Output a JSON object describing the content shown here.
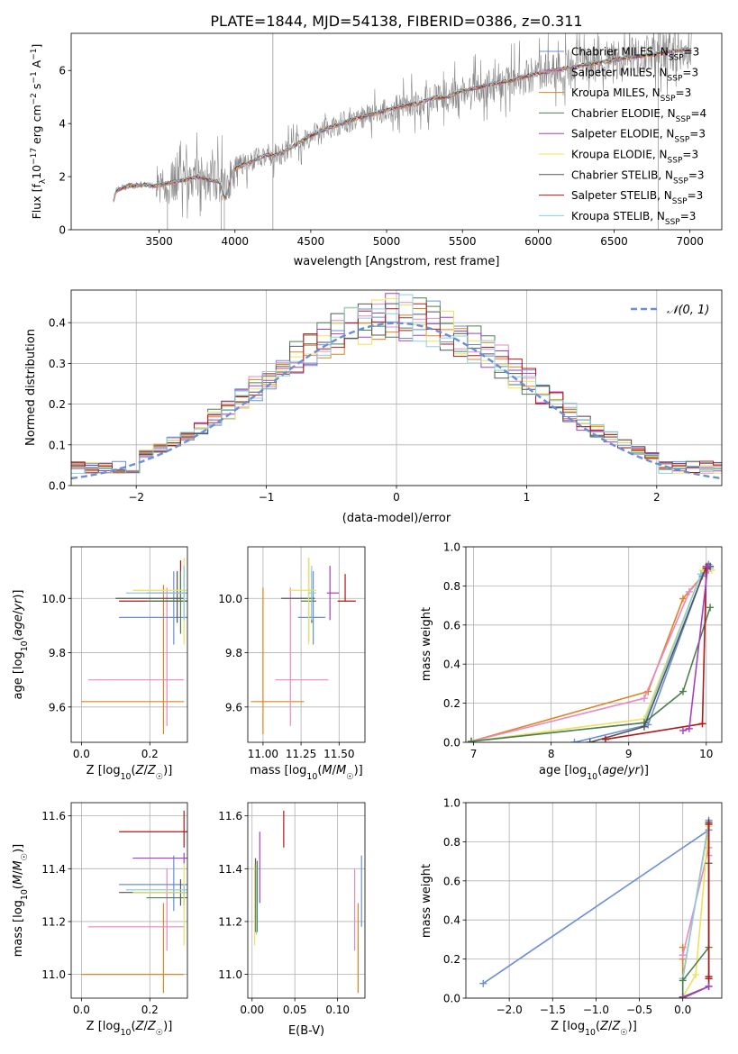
{
  "figure_title": "PLATE=1844, MJD=54138, FIBERID=0386, z=0.311",
  "colors": {
    "Chabrier MILES": "#6a8fd6",
    "Salpeter MILES": "#e889c0",
    "Kroupa MILES": "#e0821f",
    "Chabrier ELODIE": "#4f7f4f",
    "Salpeter ELODIE": "#a640c2",
    "Kroupa ELODIE": "#f0e15a",
    "Chabrier STELIB": "#555555",
    "Salpeter STELIB": "#b21818",
    "Kroupa STELIB": "#88cfe0",
    "data": "#888888",
    "gaussian": "#6a8fd6"
  },
  "chart_data": [
    {
      "type": "line",
      "panel": "spectrum",
      "xlabel": "wavelength [Angstrom, rest frame]",
      "ylabel": "Flux [f_λ10^-17 erg cm^-2 s^-1 A^-1]",
      "xlim": [
        2920,
        7210
      ],
      "ylim": [
        0,
        7.4
      ],
      "xticks": [
        3500,
        4000,
        4500,
        5000,
        5500,
        6000,
        6500,
        7000
      ],
      "yticks": [
        0,
        2,
        4,
        6
      ],
      "legend_position": "right",
      "legend": [
        {
          "label": "Chabrier MILES, N_SSP=3",
          "base": "Chabrier MILES, N",
          "sub": "SSP",
          "tail": "=3"
        },
        {
          "label": "Salpeter MILES, N_SSP=3",
          "base": "Salpeter MILES, N",
          "sub": "SSP",
          "tail": "=3"
        },
        {
          "label": "Kroupa MILES, N_SSP=3",
          "base": "Kroupa MILES, N",
          "sub": "SSP",
          "tail": "=3"
        },
        {
          "label": "Chabrier ELODIE, N_SSP=4",
          "base": "Chabrier ELODIE, N",
          "sub": "SSP",
          "tail": "=4"
        },
        {
          "label": "Salpeter ELODIE, N_SSP=3",
          "base": "Salpeter ELODIE, N",
          "sub": "SSP",
          "tail": "=3"
        },
        {
          "label": "Kroupa ELODIE, N_SSP=3",
          "base": "Kroupa ELODIE, N",
          "sub": "SSP",
          "tail": "=3"
        },
        {
          "label": "Chabrier STELIB, N_SSP=3",
          "base": "Chabrier STELIB, N",
          "sub": "SSP",
          "tail": "=3"
        },
        {
          "label": "Salpeter STELIB, N_SSP=3",
          "base": "Salpeter STELIB, N",
          "sub": "SSP",
          "tail": "=3"
        },
        {
          "label": "Kroupa STELIB, N_SSP=3",
          "base": "Kroupa STELIB, N",
          "sub": "SSP",
          "tail": "=3"
        }
      ],
      "continuum": [
        [
          3200,
          1.15
        ],
        [
          3220,
          1.5
        ],
        [
          3300,
          1.65
        ],
        [
          3400,
          1.7
        ],
        [
          3480,
          1.65
        ],
        [
          3550,
          1.75
        ],
        [
          3650,
          1.85
        ],
        [
          3750,
          2.0
        ],
        [
          3850,
          1.85
        ],
        [
          3950,
          1.8
        ],
        [
          4000,
          2.3
        ],
        [
          4100,
          2.55
        ],
        [
          4200,
          2.8
        ],
        [
          4300,
          2.85
        ],
        [
          4400,
          3.2
        ],
        [
          4500,
          3.55
        ],
        [
          4600,
          3.8
        ],
        [
          4700,
          4.0
        ],
        [
          4800,
          4.2
        ],
        [
          4900,
          4.35
        ],
        [
          5000,
          4.5
        ],
        [
          5100,
          4.65
        ],
        [
          5200,
          4.75
        ],
        [
          5300,
          4.95
        ],
        [
          5400,
          5.0
        ],
        [
          5500,
          5.25
        ],
        [
          5600,
          5.35
        ],
        [
          5700,
          5.5
        ],
        [
          5800,
          5.6
        ],
        [
          5900,
          5.75
        ],
        [
          6000,
          5.9
        ],
        [
          6100,
          6.0
        ],
        [
          6200,
          6.1
        ],
        [
          6300,
          6.2
        ],
        [
          6400,
          6.3
        ],
        [
          6500,
          6.4
        ],
        [
          6600,
          6.5
        ],
        [
          6700,
          6.55
        ],
        [
          6800,
          6.65
        ],
        [
          6900,
          6.75
        ],
        [
          7010,
          6.8
        ]
      ]
    },
    {
      "type": "line",
      "panel": "residuals",
      "xlabel": "(data-model)/error",
      "ylabel": "Normed distribution",
      "xlim": [
        -2.5,
        2.5
      ],
      "ylim": [
        0,
        0.48
      ],
      "xticks": [
        -2,
        -1,
        0,
        1,
        2
      ],
      "yticks": [
        0.0,
        0.1,
        0.2,
        0.3,
        0.4
      ],
      "grid": true,
      "legend_position": "top-right",
      "gaussian_label": "𝒩(0, 1)"
    },
    {
      "type": "scatter",
      "panel": "age-vs-metallicity",
      "xlabel": "Z [log10(Z/Z☉)]",
      "ylabel": "age [log10(age/yr)]",
      "xlim": [
        -0.03,
        0.31
      ],
      "ylim": [
        9.47,
        10.19
      ],
      "xticks": [
        0.0,
        0.2
      ],
      "yticks": [
        9.6,
        9.8,
        10.0
      ],
      "grid": true,
      "points": [
        {
          "model": "Kroupa MILES",
          "x": 0.24,
          "x_err": [
            0.24,
            0.06
          ],
          "y": 9.62,
          "y_err": [
            0.12,
            0.43
          ]
        },
        {
          "model": "Salpeter MILES",
          "x": 0.25,
          "x_err": [
            0.23,
            0.05
          ],
          "y": 9.7,
          "y_err": [
            0.17,
            0.34
          ]
        },
        {
          "model": "Chabrier MILES",
          "x": 0.27,
          "x_err": [
            0.16,
            0.04
          ],
          "y": 9.93,
          "y_err": [
            0.1,
            0.17
          ]
        },
        {
          "model": "Chabrier STELIB",
          "x": 0.28,
          "x_err": [
            0.18,
            0.02
          ],
          "y": 10.0,
          "y_err": [
            0.09,
            0.1
          ]
        },
        {
          "model": "Salpeter STELIB",
          "x": 0.29,
          "x_err": [
            0.18,
            0.02
          ],
          "y": 9.99,
          "y_err": [
            0.0,
            0.15
          ]
        },
        {
          "model": "Chabrier ELODIE",
          "x": 0.29,
          "x_err": [
            0.1,
            0.02
          ],
          "y": 9.99,
          "y_err": [
            0.12,
            0.11
          ]
        },
        {
          "model": "Salpeter ELODIE",
          "x": 0.3,
          "x_err": [
            0.11,
            0.01
          ],
          "y": 10.02,
          "y_err": [
            0.1,
            0.1
          ]
        },
        {
          "model": "Kroupa ELODIE",
          "x": 0.3,
          "x_err": [
            0.15,
            0.01
          ],
          "y": 10.03,
          "y_err": [
            0.2,
            0.12
          ]
        },
        {
          "model": "Kroupa STELIB",
          "x": 0.3,
          "x_err": [
            0.17,
            0.01
          ],
          "y": 10.02,
          "y_err": [
            0.1,
            0.1
          ]
        }
      ]
    },
    {
      "type": "scatter",
      "panel": "age-vs-mass",
      "xlabel": "mass [log10(M/M☉)]",
      "ylabel": "",
      "xlim": [
        10.9,
        11.67
      ],
      "ylim": [
        9.47,
        10.19
      ],
      "xticks": [
        11.0,
        11.25,
        11.5
      ],
      "yticks": [
        9.6,
        9.8,
        10.0
      ],
      "grid": true,
      "points": [
        {
          "model": "Kroupa MILES",
          "x": 11.0,
          "x_err": [
            0.08,
            0.27
          ],
          "y": 9.62,
          "y_err": [
            0.12,
            0.42
          ]
        },
        {
          "model": "Salpeter MILES",
          "x": 11.18,
          "x_err": [
            0.1,
            0.25
          ],
          "y": 9.7,
          "y_err": [
            0.17,
            0.34
          ]
        },
        {
          "model": "Chabrier MILES",
          "x": 11.33,
          "x_err": [
            0.1,
            0.08
          ],
          "y": 9.93,
          "y_err": [
            0.1,
            0.17
          ]
        },
        {
          "model": "Chabrier STELIB",
          "x": 11.32,
          "x_err": [
            0.2,
            0.02
          ],
          "y": 10.0,
          "y_err": [
            0.09,
            0.1
          ]
        },
        {
          "model": "Salpeter STELIB",
          "x": 11.54,
          "x_err": [
            0.05,
            0.07
          ],
          "y": 9.99,
          "y_err": [
            0.0,
            0.1
          ]
        },
        {
          "model": "Chabrier ELODIE",
          "x": 11.3,
          "x_err": [
            0.05,
            0.05
          ],
          "y": 9.99,
          "y_err": [
            0.15,
            0.16
          ]
        },
        {
          "model": "Salpeter ELODIE",
          "x": 11.44,
          "x_err": [
            0.02,
            0.06
          ],
          "y": 10.02,
          "y_err": [
            0.1,
            0.1
          ]
        },
        {
          "model": "Kroupa ELODIE",
          "x": 11.3,
          "x_err": [
            0.13,
            0.05
          ],
          "y": 10.03,
          "y_err": [
            0.2,
            0.12
          ]
        },
        {
          "model": "Kroupa STELIB",
          "x": 11.32,
          "x_err": [
            0.02,
            0.03
          ],
          "y": 10.02,
          "y_err": [
            0.1,
            0.1
          ]
        }
      ]
    },
    {
      "type": "line",
      "panel": "mass-weight-vs-age",
      "xlabel": "age [log10(age/yr)]",
      "ylabel": "mass weight",
      "xlim": [
        6.9,
        10.2
      ],
      "ylim": [
        0,
        1.0
      ],
      "xticks": [
        7,
        8,
        9,
        10
      ],
      "yticks": [
        0.0,
        0.2,
        0.4,
        0.6,
        0.8,
        1.0
      ],
      "grid": true,
      "series": [
        {
          "model": "Kroupa MILES",
          "x": [
            6.97,
            9.25,
            9.7,
            10.05
          ],
          "y": [
            0.005,
            0.26,
            0.735,
            0.9
          ]
        },
        {
          "model": "Salpeter MILES",
          "x": [
            6.97,
            9.2,
            9.78,
            10.03
          ],
          "y": [
            0.005,
            0.225,
            0.77,
            0.88
          ]
        },
        {
          "model": "Kroupa ELODIE",
          "x": [
            6.97,
            9.2,
            9.95,
            10.07
          ],
          "y": [
            0.005,
            0.12,
            0.88,
            0.88
          ]
        },
        {
          "model": "Kroupa STELIB",
          "x": [
            6.97,
            9.2,
            9.93,
            10.05
          ],
          "y": [
            0.005,
            0.1,
            0.86,
            0.89
          ]
        },
        {
          "model": "Chabrier MILES",
          "x": [
            8.3,
            9.25,
            9.95,
            10.03
          ],
          "y": [
            0.0,
            0.09,
            0.85,
            0.91
          ]
        },
        {
          "model": "Chabrier ELODIE",
          "x": [
            6.97,
            9.2,
            9.7,
            10.05
          ],
          "y": [
            0.005,
            0.1,
            0.26,
            0.69
          ]
        },
        {
          "model": "Chabrier STELIB",
          "x": [
            8.5,
            9.2,
            10.0,
            10.05
          ],
          "y": [
            0.0,
            0.08,
            0.9,
            0.9
          ]
        },
        {
          "model": "Salpeter STELIB",
          "x": [
            8.7,
            9.95,
            10.0
          ],
          "y": [
            0.015,
            0.095,
            0.89
          ]
        },
        {
          "model": "Salpeter ELODIE",
          "x": [
            9.7,
            9.78,
            10.02
          ],
          "y": [
            0.06,
            0.07,
            0.9
          ]
        }
      ]
    },
    {
      "type": "scatter",
      "panel": "mass-vs-metallicity",
      "xlabel": "Z [log10(Z/Z☉)]",
      "ylabel": "mass [log10(M/M☉)]",
      "xlim": [
        -0.03,
        0.31
      ],
      "ylim": [
        10.91,
        11.65
      ],
      "xticks": [
        0.0,
        0.2
      ],
      "yticks": [
        11.0,
        11.2,
        11.4,
        11.6
      ],
      "grid": true,
      "points": [
        {
          "model": "Kroupa MILES",
          "x": 0.24,
          "x_err": [
            0.24,
            0.06
          ],
          "y": 11.0,
          "y_err": [
            0.07,
            0.27
          ]
        },
        {
          "model": "Salpeter MILES",
          "x": 0.25,
          "x_err": [
            0.23,
            0.05
          ],
          "y": 11.18,
          "y_err": [
            0.09,
            0.22
          ]
        },
        {
          "model": "Chabrier MILES",
          "x": 0.27,
          "x_err": [
            0.16,
            0.04
          ],
          "y": 11.34,
          "y_err": [
            0.1,
            0.11
          ]
        },
        {
          "model": "Chabrier STELIB",
          "x": 0.29,
          "x_err": [
            0.18,
            0.02
          ],
          "y": 11.31,
          "y_err": [
            0.05,
            0.05
          ]
        },
        {
          "model": "Salpeter STELIB",
          "x": 0.3,
          "x_err": [
            0.19,
            0.01
          ],
          "y": 11.54,
          "y_err": [
            0.06,
            0.08
          ]
        },
        {
          "model": "Chabrier ELODIE",
          "x": 0.3,
          "x_err": [
            0.11,
            0.01
          ],
          "y": 11.29,
          "y_err": [
            0.03,
            0.05
          ]
        },
        {
          "model": "Salpeter ELODIE",
          "x": 0.3,
          "x_err": [
            0.15,
            0.01
          ],
          "y": 11.44,
          "y_err": [
            0.02,
            0.02
          ]
        },
        {
          "model": "Kroupa ELODIE",
          "x": 0.3,
          "x_err": [
            0.15,
            0.01
          ],
          "y": 11.31,
          "y_err": [
            0.2,
            0.11
          ]
        },
        {
          "model": "Kroupa STELIB",
          "x": 0.3,
          "x_err": [
            0.17,
            0.01
          ],
          "y": 11.32,
          "y_err": [
            0.02,
            0.02
          ]
        }
      ]
    },
    {
      "type": "scatter",
      "panel": "mass-vs-extinction",
      "xlabel": "E(B-V)",
      "ylabel": "",
      "xlim": [
        -0.005,
        0.132
      ],
      "ylim": [
        10.91,
        11.65
      ],
      "xticks": [
        0.0,
        0.05,
        0.1
      ],
      "yticks": [
        11.0,
        11.2,
        11.4,
        11.6
      ],
      "grid": true,
      "points": [
        {
          "model": "Kroupa MILES",
          "x": 0.124,
          "y": 11.1,
          "y_err": [
            0.17,
            0.17
          ]
        },
        {
          "model": "Salpeter MILES",
          "x": 0.12,
          "y": 11.25,
          "y_err": [
            0.16,
            0.15
          ]
        },
        {
          "model": "Chabrier MILES",
          "x": 0.128,
          "y": 11.32,
          "y_err": [
            0.14,
            0.13
          ]
        },
        {
          "model": "Chabrier STELIB",
          "x": 0.004,
          "y": 11.3,
          "y_err": [
            0.14,
            0.14
          ]
        },
        {
          "model": "Salpeter STELIB",
          "x": 0.037,
          "y": 11.55,
          "y_err": [
            0.07,
            0.07
          ]
        },
        {
          "model": "Chabrier ELODIE",
          "x": 0.006,
          "y": 11.29,
          "y_err": [
            0.13,
            0.14
          ]
        },
        {
          "model": "Salpeter ELODIE",
          "x": 0.009,
          "y": 11.4,
          "y_err": [
            0.13,
            0.14
          ]
        },
        {
          "model": "Kroupa ELODIE",
          "x": 0.003,
          "y": 11.27,
          "y_err": [
            0.16,
            0.15
          ]
        },
        {
          "model": "Kroupa STELIB",
          "x": 0.005,
          "y": 11.28,
          "y_err": [
            0.13,
            0.13
          ]
        }
      ]
    },
    {
      "type": "line",
      "panel": "mass-weight-vs-metallicity",
      "xlabel": "Z [log10(Z/Z☉)]",
      "ylabel": "mass weight",
      "xlim": [
        -2.5,
        0.45
      ],
      "ylim": [
        0,
        1.0
      ],
      "xticks": [
        -2.0,
        -1.5,
        -1.0,
        -0.5,
        0.0
      ],
      "yticks": [
        0.0,
        0.2,
        0.4,
        0.6,
        0.8,
        1.0
      ],
      "grid": true,
      "series": [
        {
          "model": "Chabrier MILES",
          "x": [
            -2.3,
            0.3,
            0.3
          ],
          "y": [
            0.075,
            0.86,
            0.91
          ]
        },
        {
          "model": "Kroupa MILES",
          "x": [
            0.0,
            0.0,
            0.0,
            0.3
          ],
          "y": [
            0.26,
            0.2,
            0.1,
            0.9
          ]
        },
        {
          "model": "Salpeter MILES",
          "x": [
            0.0,
            0.3,
            0.3
          ],
          "y": [
            0.22,
            0.77,
            0.73
          ]
        },
        {
          "model": "Kroupa ELODIE",
          "x": [
            0.0,
            0.15,
            0.3
          ],
          "y": [
            0.005,
            0.12,
            0.88
          ]
        },
        {
          "model": "Kroupa STELIB",
          "x": [
            0.0,
            0.0,
            0.3
          ],
          "y": [
            0.005,
            0.1,
            0.89
          ]
        },
        {
          "model": "Chabrier ELODIE",
          "x": [
            0.0,
            0.0,
            0.3,
            0.3
          ],
          "y": [
            0.005,
            0.09,
            0.26,
            0.69
          ]
        },
        {
          "model": "Chabrier STELIB",
          "x": [
            0.0,
            0.3,
            0.3
          ],
          "y": [
            0.005,
            0.06,
            0.9
          ]
        },
        {
          "model": "Salpeter STELIB",
          "x": [
            0.3,
            0.3,
            0.3
          ],
          "y": [
            0.1,
            0.11,
            0.89
          ]
        },
        {
          "model": "Salpeter ELODIE",
          "x": [
            0.0,
            0.3
          ],
          "y": [
            0.0,
            0.06
          ]
        }
      ]
    }
  ]
}
